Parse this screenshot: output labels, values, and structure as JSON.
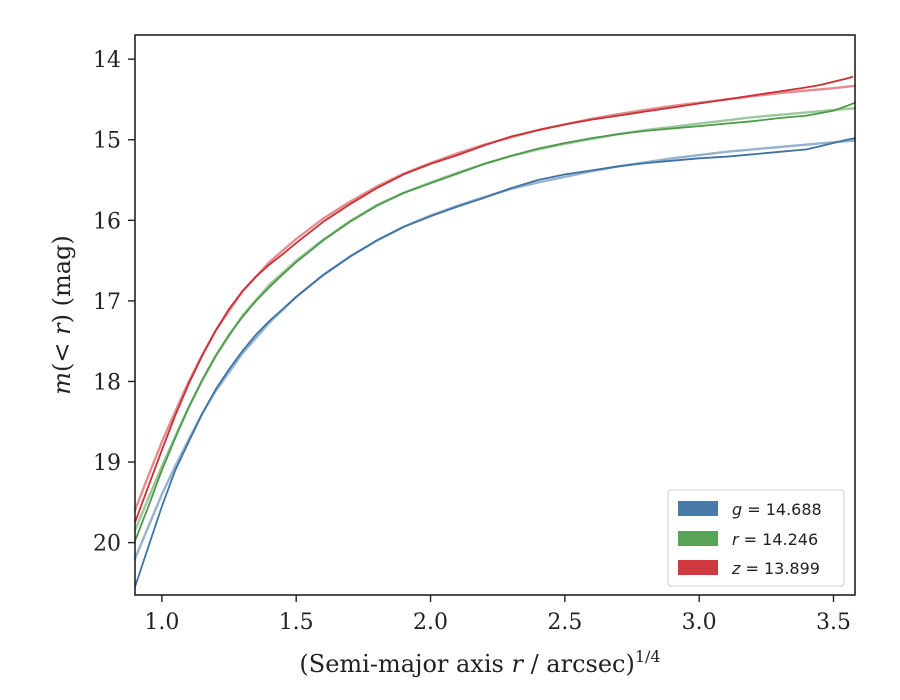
{
  "chart_data": {
    "type": "line",
    "xlabel": "(Semi-major axis r / arcsec)",
    "xlabel_pre": "(Semi-major axis ",
    "xlabel_var": "r",
    "xlabel_post": " / arcsec)",
    "xlabel_sup": "1/4",
    "ylabel": "m(< r) (mag)",
    "ylabel_pre": "m",
    "ylabel_mid": "(< ",
    "ylabel_var": "r",
    "ylabel_post": ") (mag)",
    "xlim": [
      0.9,
      3.58
    ],
    "ylim": [
      20.65,
      13.7
    ],
    "y_inverted": true,
    "xticks": [
      1.0,
      1.5,
      2.0,
      2.5,
      3.0,
      3.5
    ],
    "xtick_labels": [
      "1.0",
      "1.5",
      "2.0",
      "2.5",
      "3.0",
      "3.5"
    ],
    "yticks": [
      14,
      15,
      16,
      17,
      18,
      19,
      20
    ],
    "ytick_labels": [
      "14",
      "15",
      "16",
      "17",
      "18",
      "19",
      "20"
    ],
    "grid": false,
    "legend_position": "lower-right",
    "legend": [
      {
        "label": "g = 14.688",
        "var": "g",
        "text": " = 14.688",
        "color": "#4a7ba8"
      },
      {
        "label": "r = 14.246",
        "var": "r",
        "text": " = 14.246",
        "color": "#58a356"
      },
      {
        "label": "z = 13.899",
        "var": "z",
        "text": " = 13.899",
        "color": "#d2393e"
      }
    ],
    "series": [
      {
        "name": "g",
        "color": "#3f73a6",
        "data": [
          [
            0.9,
            20.55
          ],
          [
            0.95,
            20.05
          ],
          [
            1.0,
            19.55
          ],
          [
            1.05,
            19.1
          ],
          [
            1.1,
            18.75
          ],
          [
            1.15,
            18.4
          ],
          [
            1.2,
            18.1
          ],
          [
            1.25,
            17.85
          ],
          [
            1.3,
            17.62
          ],
          [
            1.35,
            17.42
          ],
          [
            1.4,
            17.25
          ],
          [
            1.45,
            17.1
          ],
          [
            1.5,
            16.95
          ],
          [
            1.6,
            16.68
          ],
          [
            1.7,
            16.45
          ],
          [
            1.8,
            16.25
          ],
          [
            1.9,
            16.08
          ],
          [
            2.0,
            15.95
          ],
          [
            2.1,
            15.83
          ],
          [
            2.2,
            15.72
          ],
          [
            2.3,
            15.6
          ],
          [
            2.4,
            15.5
          ],
          [
            2.5,
            15.43
          ],
          [
            2.6,
            15.38
          ],
          [
            2.7,
            15.33
          ],
          [
            2.8,
            15.29
          ],
          [
            2.9,
            15.26
          ],
          [
            3.0,
            15.23
          ],
          [
            3.1,
            15.21
          ],
          [
            3.2,
            15.18
          ],
          [
            3.3,
            15.15
          ],
          [
            3.4,
            15.12
          ],
          [
            3.45,
            15.08
          ],
          [
            3.5,
            15.04
          ],
          [
            3.55,
            15.0
          ],
          [
            3.58,
            14.98
          ]
        ]
      },
      {
        "name": "g model",
        "color": "#3f73a6",
        "model": true,
        "data": [
          [
            0.9,
            20.2
          ],
          [
            0.95,
            19.8
          ],
          [
            1.0,
            19.4
          ],
          [
            1.05,
            19.05
          ],
          [
            1.1,
            18.72
          ],
          [
            1.15,
            18.4
          ],
          [
            1.2,
            18.12
          ],
          [
            1.3,
            17.65
          ],
          [
            1.4,
            17.27
          ],
          [
            1.5,
            16.95
          ],
          [
            1.6,
            16.68
          ],
          [
            1.7,
            16.45
          ],
          [
            1.8,
            16.25
          ],
          [
            1.9,
            16.08
          ],
          [
            2.0,
            15.94
          ],
          [
            2.1,
            15.82
          ],
          [
            2.2,
            15.71
          ],
          [
            2.3,
            15.61
          ],
          [
            2.4,
            15.53
          ],
          [
            2.5,
            15.46
          ],
          [
            2.6,
            15.39
          ],
          [
            2.7,
            15.33
          ],
          [
            2.8,
            15.28
          ],
          [
            2.9,
            15.23
          ],
          [
            3.0,
            15.19
          ],
          [
            3.1,
            15.15
          ],
          [
            3.2,
            15.12
          ],
          [
            3.3,
            15.09
          ],
          [
            3.4,
            15.06
          ],
          [
            3.5,
            15.03
          ],
          [
            3.58,
            15.01
          ]
        ]
      },
      {
        "name": "r",
        "color": "#4d9a4a",
        "data": [
          [
            0.9,
            19.98
          ],
          [
            0.95,
            19.55
          ],
          [
            1.0,
            19.1
          ],
          [
            1.05,
            18.7
          ],
          [
            1.1,
            18.32
          ],
          [
            1.15,
            17.98
          ],
          [
            1.2,
            17.68
          ],
          [
            1.25,
            17.42
          ],
          [
            1.3,
            17.2
          ],
          [
            1.35,
            17.0
          ],
          [
            1.4,
            16.83
          ],
          [
            1.45,
            16.67
          ],
          [
            1.5,
            16.52
          ],
          [
            1.6,
            16.25
          ],
          [
            1.7,
            16.02
          ],
          [
            1.8,
            15.82
          ],
          [
            1.9,
            15.66
          ],
          [
            2.0,
            15.54
          ],
          [
            2.1,
            15.42
          ],
          [
            2.2,
            15.3
          ],
          [
            2.3,
            15.2
          ],
          [
            2.4,
            15.11
          ],
          [
            2.5,
            15.04
          ],
          [
            2.6,
            14.98
          ],
          [
            2.7,
            14.93
          ],
          [
            2.8,
            14.89
          ],
          [
            2.9,
            14.86
          ],
          [
            3.0,
            14.83
          ],
          [
            3.1,
            14.8
          ],
          [
            3.2,
            14.77
          ],
          [
            3.3,
            14.73
          ],
          [
            3.4,
            14.7
          ],
          [
            3.5,
            14.64
          ],
          [
            3.55,
            14.58
          ],
          [
            3.58,
            14.54
          ]
        ]
      },
      {
        "name": "r model",
        "color": "#4d9a4a",
        "model": true,
        "data": [
          [
            0.9,
            19.85
          ],
          [
            0.95,
            19.45
          ],
          [
            1.0,
            19.05
          ],
          [
            1.05,
            18.68
          ],
          [
            1.1,
            18.32
          ],
          [
            1.15,
            17.99
          ],
          [
            1.2,
            17.69
          ],
          [
            1.3,
            17.18
          ],
          [
            1.4,
            16.8
          ],
          [
            1.5,
            16.5
          ],
          [
            1.6,
            16.24
          ],
          [
            1.7,
            16.01
          ],
          [
            1.8,
            15.81
          ],
          [
            1.9,
            15.66
          ],
          [
            2.0,
            15.53
          ],
          [
            2.1,
            15.41
          ],
          [
            2.2,
            15.3
          ],
          [
            2.3,
            15.2
          ],
          [
            2.4,
            15.12
          ],
          [
            2.5,
            15.05
          ],
          [
            2.6,
            14.99
          ],
          [
            2.7,
            14.93
          ],
          [
            2.8,
            14.88
          ],
          [
            2.9,
            14.84
          ],
          [
            3.0,
            14.8
          ],
          [
            3.1,
            14.76
          ],
          [
            3.2,
            14.72
          ],
          [
            3.3,
            14.69
          ],
          [
            3.4,
            14.66
          ],
          [
            3.5,
            14.63
          ],
          [
            3.58,
            14.61
          ]
        ]
      },
      {
        "name": "z",
        "color": "#cc3035",
        "data": [
          [
            0.9,
            19.75
          ],
          [
            0.95,
            19.3
          ],
          [
            1.0,
            18.85
          ],
          [
            1.05,
            18.42
          ],
          [
            1.1,
            18.03
          ],
          [
            1.15,
            17.68
          ],
          [
            1.2,
            17.37
          ],
          [
            1.25,
            17.1
          ],
          [
            1.3,
            16.88
          ],
          [
            1.35,
            16.7
          ],
          [
            1.4,
            16.55
          ],
          [
            1.45,
            16.42
          ],
          [
            1.5,
            16.28
          ],
          [
            1.6,
            16.02
          ],
          [
            1.7,
            15.8
          ],
          [
            1.8,
            15.6
          ],
          [
            1.9,
            15.43
          ],
          [
            2.0,
            15.3
          ],
          [
            2.1,
            15.19
          ],
          [
            2.2,
            15.07
          ],
          [
            2.3,
            14.96
          ],
          [
            2.4,
            14.88
          ],
          [
            2.5,
            14.81
          ],
          [
            2.6,
            14.75
          ],
          [
            2.7,
            14.7
          ],
          [
            2.8,
            14.65
          ],
          [
            2.9,
            14.6
          ],
          [
            3.0,
            14.55
          ],
          [
            3.1,
            14.5
          ],
          [
            3.2,
            14.45
          ],
          [
            3.3,
            14.4
          ],
          [
            3.4,
            14.35
          ],
          [
            3.45,
            14.32
          ],
          [
            3.5,
            14.28
          ],
          [
            3.55,
            14.24
          ],
          [
            3.57,
            14.22
          ]
        ]
      },
      {
        "name": "z model",
        "color": "#cc3035",
        "model": true,
        "data": [
          [
            0.9,
            19.6
          ],
          [
            0.95,
            19.17
          ],
          [
            1.0,
            18.75
          ],
          [
            1.05,
            18.37
          ],
          [
            1.1,
            18.0
          ],
          [
            1.15,
            17.67
          ],
          [
            1.2,
            17.37
          ],
          [
            1.3,
            16.88
          ],
          [
            1.4,
            16.52
          ],
          [
            1.5,
            16.23
          ],
          [
            1.6,
            15.98
          ],
          [
            1.7,
            15.77
          ],
          [
            1.8,
            15.58
          ],
          [
            1.9,
            15.42
          ],
          [
            2.0,
            15.29
          ],
          [
            2.1,
            15.17
          ],
          [
            2.2,
            15.06
          ],
          [
            2.3,
            14.97
          ],
          [
            2.4,
            14.88
          ],
          [
            2.5,
            14.81
          ],
          [
            2.6,
            14.74
          ],
          [
            2.7,
            14.68
          ],
          [
            2.8,
            14.63
          ],
          [
            2.9,
            14.58
          ],
          [
            3.0,
            14.54
          ],
          [
            3.1,
            14.5
          ],
          [
            3.2,
            14.46
          ],
          [
            3.3,
            14.42
          ],
          [
            3.4,
            14.39
          ],
          [
            3.5,
            14.36
          ],
          [
            3.58,
            14.33
          ]
        ]
      }
    ]
  }
}
